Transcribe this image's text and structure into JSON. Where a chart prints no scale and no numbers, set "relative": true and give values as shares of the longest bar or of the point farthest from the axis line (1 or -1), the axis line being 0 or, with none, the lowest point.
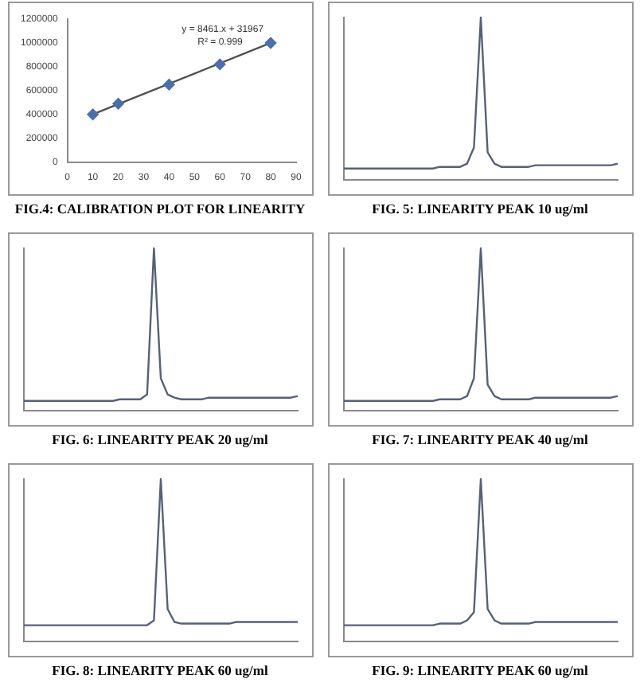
{
  "chart_data": [
    {
      "type": "scatter",
      "title": "FIG.4: CALIBRATION PLOT FOR LINEARITY",
      "xlim": [
        0,
        90
      ],
      "xticks": [
        0,
        10,
        20,
        30,
        40,
        50,
        60,
        70,
        80,
        90
      ],
      "ylim": [
        0,
        1200000
      ],
      "yticks": [
        0,
        200000,
        400000,
        600000,
        800000,
        1000000,
        1200000
      ],
      "annotations": [
        "y = 8461.x + 31967",
        "R² = 0.999"
      ],
      "series": [
        {
          "type": "scatter",
          "color": "#4a6fb0",
          "marker": "diamond",
          "x": [
            10,
            20,
            40,
            60,
            80
          ],
          "values": [
            400000,
            490000,
            650000,
            820000,
            1000000
          ]
        },
        {
          "type": "line",
          "color": "#505050",
          "marker": "none",
          "x": [
            10,
            80
          ],
          "values": [
            400000,
            1000000
          ]
        }
      ]
    },
    {
      "type": "line",
      "title": "FIG. 5: LINEARITY PEAK 10 ug/ml",
      "relative": true,
      "categories": [
        null,
        null,
        null,
        null,
        null,
        null,
        null,
        null,
        null,
        null,
        null,
        null,
        null,
        null,
        null,
        null,
        null,
        null,
        null,
        null,
        null,
        null,
        null,
        null,
        null,
        null,
        null,
        null,
        null,
        null,
        null,
        null,
        null,
        null,
        null,
        null,
        null,
        null,
        null,
        null,
        null
      ],
      "series": [
        {
          "color": "#56607a",
          "values": [
            0.07,
            0.07,
            0.07,
            0.07,
            0.07,
            0.07,
            0.07,
            0.07,
            0.07,
            0.07,
            0.07,
            0.07,
            0.07,
            0.07,
            0.08,
            0.08,
            0.08,
            0.08,
            0.1,
            0.2,
            1,
            0.17,
            0.1,
            0.08,
            0.08,
            0.08,
            0.08,
            0.08,
            0.09,
            0.09,
            0.09,
            0.09,
            0.09,
            0.09,
            0.09,
            0.09,
            0.09,
            0.09,
            0.09,
            0.09,
            0.1
          ]
        }
      ]
    },
    {
      "type": "line",
      "title": "FIG. 6: LINEARITY PEAK 20 ug/ml",
      "relative": true,
      "categories": [
        null,
        null,
        null,
        null,
        null,
        null,
        null,
        null,
        null,
        null,
        null,
        null,
        null,
        null,
        null,
        null,
        null,
        null,
        null,
        null,
        null,
        null,
        null,
        null,
        null,
        null,
        null,
        null,
        null,
        null,
        null,
        null,
        null,
        null,
        null,
        null,
        null,
        null,
        null,
        null,
        null
      ],
      "series": [
        {
          "color": "#56607a",
          "values": [
            0.06,
            0.06,
            0.06,
            0.06,
            0.06,
            0.06,
            0.06,
            0.06,
            0.06,
            0.06,
            0.06,
            0.06,
            0.06,
            0.06,
            0.07,
            0.07,
            0.07,
            0.07,
            0.1,
            1,
            0.2,
            0.1,
            0.08,
            0.07,
            0.07,
            0.07,
            0.07,
            0.08,
            0.08,
            0.08,
            0.08,
            0.08,
            0.08,
            0.08,
            0.08,
            0.08,
            0.08,
            0.08,
            0.08,
            0.08,
            0.09
          ]
        }
      ]
    },
    {
      "type": "line",
      "title": "FIG. 7: LINEARITY PEAK 40 ug/ml",
      "relative": true,
      "categories": [
        null,
        null,
        null,
        null,
        null,
        null,
        null,
        null,
        null,
        null,
        null,
        null,
        null,
        null,
        null,
        null,
        null,
        null,
        null,
        null,
        null,
        null,
        null,
        null,
        null,
        null,
        null,
        null,
        null,
        null,
        null,
        null,
        null,
        null,
        null,
        null,
        null,
        null,
        null,
        null,
        null
      ],
      "series": [
        {
          "color": "#56607a",
          "values": [
            0.06,
            0.06,
            0.06,
            0.06,
            0.06,
            0.06,
            0.06,
            0.06,
            0.06,
            0.06,
            0.06,
            0.06,
            0.06,
            0.06,
            0.07,
            0.07,
            0.07,
            0.07,
            0.09,
            0.2,
            1,
            0.16,
            0.09,
            0.07,
            0.07,
            0.07,
            0.07,
            0.07,
            0.08,
            0.08,
            0.08,
            0.08,
            0.08,
            0.08,
            0.08,
            0.08,
            0.08,
            0.08,
            0.08,
            0.08,
            0.09
          ]
        }
      ]
    },
    {
      "type": "line",
      "title": "FIG. 8: LINEARITY PEAK 60 ug/ml",
      "relative": true,
      "categories": [
        null,
        null,
        null,
        null,
        null,
        null,
        null,
        null,
        null,
        null,
        null,
        null,
        null,
        null,
        null,
        null,
        null,
        null,
        null,
        null,
        null,
        null,
        null,
        null,
        null,
        null,
        null,
        null,
        null,
        null,
        null,
        null,
        null,
        null,
        null,
        null,
        null,
        null,
        null,
        null,
        null
      ],
      "series": [
        {
          "color": "#56607a",
          "values": [
            0.1,
            0.1,
            0.1,
            0.1,
            0.1,
            0.1,
            0.1,
            0.1,
            0.1,
            0.1,
            0.1,
            0.1,
            0.1,
            0.1,
            0.1,
            0.1,
            0.1,
            0.1,
            0.1,
            0.13,
            1,
            0.2,
            0.12,
            0.11,
            0.11,
            0.11,
            0.11,
            0.11,
            0.11,
            0.11,
            0.11,
            0.12,
            0.12,
            0.12,
            0.12,
            0.12,
            0.12,
            0.12,
            0.12,
            0.12,
            0.12
          ]
        }
      ]
    },
    {
      "type": "line",
      "title": "FIG. 9: LINEARITY PEAK 60 ug/ml",
      "relative": true,
      "categories": [
        null,
        null,
        null,
        null,
        null,
        null,
        null,
        null,
        null,
        null,
        null,
        null,
        null,
        null,
        null,
        null,
        null,
        null,
        null,
        null,
        null,
        null,
        null,
        null,
        null,
        null,
        null,
        null,
        null,
        null,
        null,
        null,
        null,
        null,
        null,
        null,
        null,
        null,
        null,
        null,
        null
      ],
      "series": [
        {
          "color": "#56607a",
          "values": [
            0.1,
            0.1,
            0.1,
            0.1,
            0.1,
            0.1,
            0.1,
            0.1,
            0.1,
            0.1,
            0.1,
            0.1,
            0.1,
            0.1,
            0.11,
            0.11,
            0.11,
            0.11,
            0.13,
            0.18,
            1,
            0.2,
            0.13,
            0.11,
            0.11,
            0.11,
            0.11,
            0.11,
            0.12,
            0.12,
            0.12,
            0.12,
            0.12,
            0.12,
            0.12,
            0.12,
            0.12,
            0.12,
            0.12,
            0.12,
            0.12
          ]
        }
      ]
    }
  ]
}
